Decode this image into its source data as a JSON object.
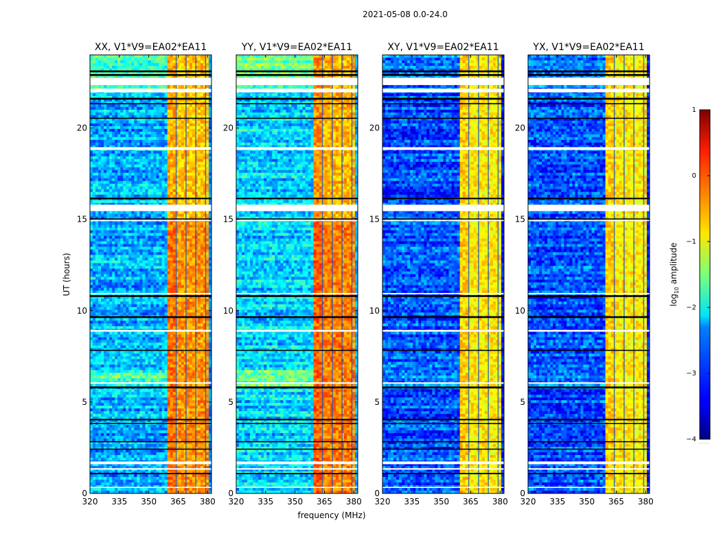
{
  "figure": {
    "suptitle": "2021-05-08 0.0-24.0"
  },
  "chart_data": {
    "type": "heatmap",
    "title": "2021-05-08 0.0-24.0",
    "xlabel": "frequency (MHz)",
    "ylabel": "UT (hours)",
    "xlim": [
      320,
      382
    ],
    "ylim": [
      0,
      24
    ],
    "xticks": [
      320,
      335,
      350,
      365,
      380
    ],
    "yticks": [
      0,
      5,
      10,
      15,
      20
    ],
    "colorscale": "jet",
    "colorbar": {
      "label_main": "log",
      "label_sub": "10",
      "label_rest": " amplitude",
      "range": [
        -4,
        1
      ],
      "ticks": [
        1,
        0,
        -1,
        -2,
        -3,
        -4
      ],
      "tick_labels": [
        "1",
        "0",
        "−1",
        "−2",
        "−3",
        "−4"
      ]
    },
    "bright_band_mhz": [
      360,
      380
    ],
    "band_divider_lines_mhz": [
      364,
      369,
      374,
      379
    ],
    "panels": [
      {
        "name": "XX",
        "title": "XX, V1*V9=EA02*EA11",
        "bg_level": -2.5,
        "band_level": -0.6
      },
      {
        "name": "YY",
        "title": "YY, V1*V9=EA02*EA11",
        "bg_level": -2.3,
        "band_level": -0.5
      },
      {
        "name": "XY",
        "title": "XY, V1*V9=EA02*EA11",
        "bg_level": -3.0,
        "band_level": -0.8
      },
      {
        "name": "YX",
        "title": "YX, V1*V9=EA02*EA11",
        "bg_level": -3.0,
        "band_level": -0.8
      }
    ],
    "flagged_rows_white_hours": [
      [
        22.35,
        22.75
      ],
      [
        21.95,
        22.15
      ],
      [
        18.8,
        18.95
      ],
      [
        15.45,
        15.8
      ],
      [
        14.9,
        14.97
      ],
      [
        10.9,
        10.97
      ],
      [
        8.85,
        8.95
      ],
      [
        6.0,
        6.08
      ],
      [
        1.6,
        1.75
      ],
      [
        1.3,
        1.38
      ],
      [
        0.3,
        0.36
      ]
    ],
    "flagged_rows_black_hours": [
      [
        23.05,
        23.15
      ],
      [
        22.85,
        22.95
      ],
      [
        21.55,
        21.65
      ],
      [
        21.3,
        21.36
      ],
      [
        20.5,
        20.56
      ],
      [
        16.1,
        16.18
      ],
      [
        15.0,
        15.05
      ],
      [
        10.75,
        10.85
      ],
      [
        9.6,
        9.7
      ],
      [
        7.8,
        7.86
      ],
      [
        5.75,
        5.85
      ],
      [
        4.0,
        4.08
      ],
      [
        3.8,
        3.85
      ],
      [
        2.8,
        2.86
      ],
      [
        2.4,
        2.45
      ],
      [
        1.05,
        1.12
      ]
    ],
    "bright_time_ranges_hours": [
      [
        5.9,
        6.7
      ],
      [
        22.0,
        24.0
      ]
    ]
  }
}
